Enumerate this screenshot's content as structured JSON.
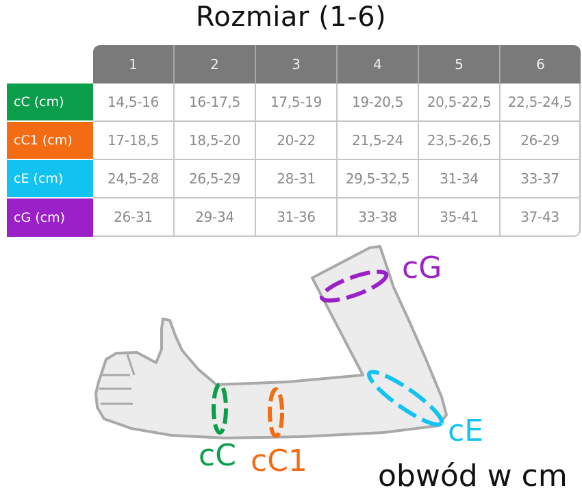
{
  "title": "Rozmiar (1-6)",
  "table": {
    "sizes": [
      "1",
      "2",
      "3",
      "4",
      "5",
      "6"
    ],
    "rows": [
      {
        "label": "cC (cm)",
        "color": "#0a9e4a",
        "values": [
          "14,5-16",
          "16-17,5",
          "17,5-19",
          "19-20,5",
          "20,5-22,5",
          "22,5-24,5"
        ]
      },
      {
        "label": "cC1 (cm)",
        "color": "#f36c14",
        "values": [
          "17-18,5",
          "18,5-20",
          "20-22",
          "21,5-24",
          "23,5-26,5",
          "26-29"
        ]
      },
      {
        "label": "cE (cm)",
        "color": "#12c3f2",
        "values": [
          "24,5-28",
          "26,5-29",
          "28-31",
          "29,5-32,5",
          "31-34",
          "33-37"
        ]
      },
      {
        "label": "cG (cm)",
        "color": "#9b20c8",
        "values": [
          "26-31",
          "29-34",
          "31-36",
          "33-38",
          "35-41",
          "37-43"
        ]
      }
    ]
  },
  "diagram": {
    "labels": {
      "cG": {
        "text": "cG",
        "color": "#9b20c8"
      },
      "cE": {
        "text": "cE",
        "color": "#12c3f2"
      },
      "cC": {
        "text": "cC",
        "color": "#0a9e4a"
      },
      "cC1": {
        "text": "cC1",
        "color": "#f36c14"
      }
    },
    "arm_fill": "#ececec",
    "arm_outline": "#a9a9a9"
  },
  "caption": "obwód w cm"
}
